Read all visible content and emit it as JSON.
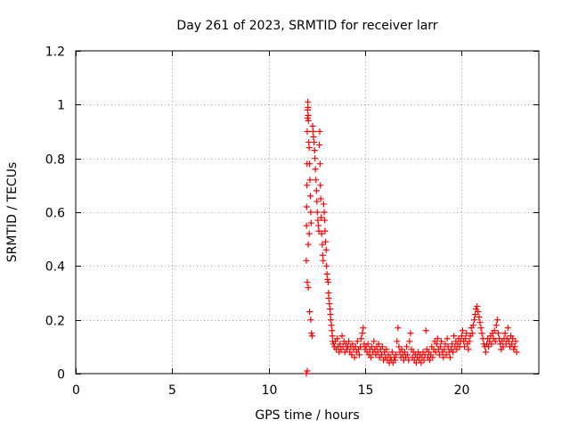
{
  "chart_data": {
    "type": "scatter",
    "title": "Day 261 of 2023, SRMTID for receiver larr",
    "xlabel": "GPS time / hours",
    "ylabel": "SRMTID / TECUs",
    "xlim": [
      0,
      24
    ],
    "ylim": [
      0,
      1.2
    ],
    "xticks": [
      0,
      5,
      10,
      15,
      20
    ],
    "yticks": [
      0,
      0.2,
      0.4,
      0.6,
      0.8,
      1,
      1.2
    ],
    "grid": true,
    "marker": "+",
    "series_color": "#ff0000",
    "series": [
      {
        "name": "SRMTID",
        "points": [
          [
            11.95,
            0.0
          ],
          [
            12.0,
            0.01
          ],
          [
            11.95,
            0.42
          ],
          [
            11.96,
            0.55
          ],
          [
            11.97,
            0.62
          ],
          [
            11.98,
            0.7
          ],
          [
            11.99,
            0.78
          ],
          [
            12.0,
            0.9
          ],
          [
            12.01,
            0.95
          ],
          [
            12.02,
            0.98
          ],
          [
            12.03,
            1.01
          ],
          [
            12.04,
            0.99
          ],
          [
            12.05,
            0.96
          ],
          [
            12.06,
            0.94
          ],
          [
            12.08,
            0.86
          ],
          [
            12.1,
            0.84
          ],
          [
            12.12,
            0.78
          ],
          [
            12.14,
            0.72
          ],
          [
            12.16,
            0.66
          ],
          [
            12.18,
            0.6
          ],
          [
            12.2,
            0.56
          ],
          [
            12.1,
            0.52
          ],
          [
            12.05,
            0.48
          ],
          [
            12.0,
            0.34
          ],
          [
            12.05,
            0.32
          ],
          [
            12.12,
            0.23
          ],
          [
            12.18,
            0.2
          ],
          [
            12.22,
            0.15
          ],
          [
            12.25,
            0.14
          ],
          [
            12.28,
            0.92
          ],
          [
            12.3,
            0.9
          ],
          [
            12.32,
            0.88
          ],
          [
            12.35,
            0.86
          ],
          [
            12.38,
            0.83
          ],
          [
            12.4,
            0.8
          ],
          [
            12.42,
            0.76
          ],
          [
            12.45,
            0.72
          ],
          [
            12.48,
            0.68
          ],
          [
            12.5,
            0.64
          ],
          [
            12.52,
            0.6
          ],
          [
            12.55,
            0.57
          ],
          [
            12.58,
            0.55
          ],
          [
            12.6,
            0.53
          ],
          [
            12.62,
            0.85
          ],
          [
            12.64,
            0.9
          ],
          [
            12.66,
            0.78
          ],
          [
            12.68,
            0.7
          ],
          [
            12.7,
            0.65
          ],
          [
            12.72,
            0.58
          ],
          [
            12.75,
            0.52
          ],
          [
            12.78,
            0.48
          ],
          [
            12.8,
            0.44
          ],
          [
            12.82,
            0.42
          ],
          [
            12.85,
            0.63
          ],
          [
            12.88,
            0.6
          ],
          [
            12.9,
            0.57
          ],
          [
            12.92,
            0.53
          ],
          [
            12.95,
            0.49
          ],
          [
            12.98,
            0.46
          ],
          [
            13.0,
            0.4
          ],
          [
            13.02,
            0.37
          ],
          [
            13.05,
            0.35
          ],
          [
            13.08,
            0.34
          ],
          [
            13.1,
            0.3
          ],
          [
            13.12,
            0.28
          ],
          [
            13.15,
            0.26
          ],
          [
            13.18,
            0.24
          ],
          [
            13.2,
            0.22
          ],
          [
            13.22,
            0.2
          ],
          [
            13.25,
            0.18
          ],
          [
            13.28,
            0.16
          ],
          [
            13.3,
            0.14
          ],
          [
            13.32,
            0.12
          ],
          [
            13.35,
            0.11
          ],
          [
            13.4,
            0.1
          ],
          [
            13.45,
            0.12
          ],
          [
            13.5,
            0.09
          ],
          [
            13.55,
            0.13
          ],
          [
            13.6,
            0.1
          ],
          [
            13.65,
            0.08
          ],
          [
            13.7,
            0.11
          ],
          [
            13.75,
            0.09
          ],
          [
            13.8,
            0.14
          ],
          [
            13.85,
            0.1
          ],
          [
            13.9,
            0.12
          ],
          [
            13.95,
            0.08
          ],
          [
            14.0,
            0.11
          ],
          [
            14.05,
            0.09
          ],
          [
            14.1,
            0.1
          ],
          [
            14.15,
            0.12
          ],
          [
            14.2,
            0.08
          ],
          [
            14.25,
            0.1
          ],
          [
            14.3,
            0.07
          ],
          [
            14.35,
            0.11
          ],
          [
            14.4,
            0.09
          ],
          [
            14.45,
            0.06
          ],
          [
            14.5,
            0.1
          ],
          [
            14.55,
            0.08
          ],
          [
            14.6,
            0.12
          ],
          [
            14.65,
            0.09
          ],
          [
            14.7,
            0.07
          ],
          [
            14.75,
            0.1
          ],
          [
            14.8,
            0.13
          ],
          [
            14.85,
            0.15
          ],
          [
            14.9,
            0.17
          ],
          [
            14.95,
            0.11
          ],
          [
            15.0,
            0.09
          ],
          [
            15.05,
            0.1
          ],
          [
            15.1,
            0.08
          ],
          [
            15.15,
            0.11
          ],
          [
            15.2,
            0.07
          ],
          [
            15.25,
            0.09
          ],
          [
            15.3,
            0.06
          ],
          [
            15.35,
            0.1
          ],
          [
            15.4,
            0.08
          ],
          [
            15.45,
            0.12
          ],
          [
            15.5,
            0.09
          ],
          [
            15.55,
            0.07
          ],
          [
            15.6,
            0.1
          ],
          [
            15.65,
            0.08
          ],
          [
            15.7,
            0.11
          ],
          [
            15.75,
            0.06
          ],
          [
            15.8,
            0.09
          ],
          [
            15.85,
            0.07
          ],
          [
            15.9,
            0.1
          ],
          [
            15.95,
            0.05
          ],
          [
            16.0,
            0.08
          ],
          [
            16.05,
            0.06
          ],
          [
            16.1,
            0.09
          ],
          [
            16.15,
            0.05
          ],
          [
            16.2,
            0.07
          ],
          [
            16.25,
            0.04
          ],
          [
            16.3,
            0.06
          ],
          [
            16.35,
            0.05
          ],
          [
            16.4,
            0.08
          ],
          [
            16.45,
            0.04
          ],
          [
            16.5,
            0.06
          ],
          [
            16.55,
            0.05
          ],
          [
            16.6,
            0.07
          ],
          [
            16.65,
            0.12
          ],
          [
            16.7,
            0.17
          ],
          [
            16.75,
            0.1
          ],
          [
            16.8,
            0.08
          ],
          [
            16.85,
            0.06
          ],
          [
            16.9,
            0.09
          ],
          [
            16.95,
            0.07
          ],
          [
            17.0,
            0.05
          ],
          [
            17.05,
            0.08
          ],
          [
            17.1,
            0.06
          ],
          [
            17.15,
            0.1
          ],
          [
            17.2,
            0.07
          ],
          [
            17.25,
            0.05
          ],
          [
            17.3,
            0.12
          ],
          [
            17.35,
            0.15
          ],
          [
            17.4,
            0.09
          ],
          [
            17.45,
            0.06
          ],
          [
            17.5,
            0.08
          ],
          [
            17.55,
            0.05
          ],
          [
            17.6,
            0.07
          ],
          [
            17.65,
            0.04
          ],
          [
            17.7,
            0.06
          ],
          [
            17.75,
            0.08
          ],
          [
            17.8,
            0.05
          ],
          [
            17.85,
            0.07
          ],
          [
            17.9,
            0.04
          ],
          [
            17.95,
            0.06
          ],
          [
            18.0,
            0.08
          ],
          [
            18.05,
            0.05
          ],
          [
            18.1,
            0.07
          ],
          [
            18.15,
            0.16
          ],
          [
            18.2,
            0.09
          ],
          [
            18.25,
            0.06
          ],
          [
            18.3,
            0.08
          ],
          [
            18.35,
            0.05
          ],
          [
            18.4,
            0.07
          ],
          [
            18.45,
            0.1
          ],
          [
            18.5,
            0.06
          ],
          [
            18.55,
            0.09
          ],
          [
            18.6,
            0.12
          ],
          [
            18.65,
            0.08
          ],
          [
            18.7,
            0.11
          ],
          [
            18.75,
            0.13
          ],
          [
            18.8,
            0.09
          ],
          [
            18.85,
            0.07
          ],
          [
            18.9,
            0.1
          ],
          [
            18.95,
            0.12
          ],
          [
            19.0,
            0.08
          ],
          [
            19.05,
            0.06
          ],
          [
            19.1,
            0.09
          ],
          [
            19.15,
            0.11
          ],
          [
            19.2,
            0.07
          ],
          [
            19.25,
            0.13
          ],
          [
            19.3,
            0.1
          ],
          [
            19.35,
            0.08
          ],
          [
            19.4,
            0.06
          ],
          [
            19.45,
            0.09
          ],
          [
            19.5,
            0.11
          ],
          [
            19.55,
            0.08
          ],
          [
            19.6,
            0.14
          ],
          [
            19.65,
            0.1
          ],
          [
            19.7,
            0.12
          ],
          [
            19.75,
            0.09
          ],
          [
            19.8,
            0.11
          ],
          [
            19.85,
            0.13
          ],
          [
            19.9,
            0.1
          ],
          [
            19.95,
            0.12
          ],
          [
            20.0,
            0.14
          ],
          [
            20.05,
            0.16
          ],
          [
            20.1,
            0.12
          ],
          [
            20.15,
            0.1
          ],
          [
            20.2,
            0.13
          ],
          [
            20.25,
            0.15
          ],
          [
            20.3,
            0.11
          ],
          [
            20.35,
            0.09
          ],
          [
            20.4,
            0.12
          ],
          [
            20.45,
            0.14
          ],
          [
            20.5,
            0.17
          ],
          [
            20.55,
            0.15
          ],
          [
            20.6,
            0.18
          ],
          [
            20.65,
            0.2
          ],
          [
            20.7,
            0.22
          ],
          [
            20.75,
            0.24
          ],
          [
            20.8,
            0.25
          ],
          [
            20.85,
            0.23
          ],
          [
            20.9,
            0.21
          ],
          [
            20.95,
            0.19
          ],
          [
            21.0,
            0.17
          ],
          [
            21.05,
            0.15
          ],
          [
            21.1,
            0.13
          ],
          [
            21.15,
            0.11
          ],
          [
            21.2,
            0.1
          ],
          [
            21.25,
            0.08
          ],
          [
            21.3,
            0.11
          ],
          [
            21.35,
            0.13
          ],
          [
            21.4,
            0.1
          ],
          [
            21.45,
            0.12
          ],
          [
            21.5,
            0.14
          ],
          [
            21.55,
            0.11
          ],
          [
            21.6,
            0.15
          ],
          [
            21.65,
            0.13
          ],
          [
            21.7,
            0.16
          ],
          [
            21.75,
            0.12
          ],
          [
            21.8,
            0.18
          ],
          [
            21.85,
            0.2
          ],
          [
            21.9,
            0.15
          ],
          [
            21.95,
            0.13
          ],
          [
            22.0,
            0.11
          ],
          [
            22.05,
            0.09
          ],
          [
            22.1,
            0.12
          ],
          [
            22.15,
            0.1
          ],
          [
            22.2,
            0.13
          ],
          [
            22.25,
            0.15
          ],
          [
            22.3,
            0.11
          ],
          [
            22.35,
            0.13
          ],
          [
            22.4,
            0.17
          ],
          [
            22.45,
            0.12
          ],
          [
            22.5,
            0.1
          ],
          [
            22.55,
            0.14
          ],
          [
            22.6,
            0.11
          ],
          [
            22.65,
            0.13
          ],
          [
            22.7,
            0.09
          ],
          [
            22.75,
            0.1
          ],
          [
            22.8,
            0.12
          ],
          [
            22.85,
            0.08
          ]
        ]
      }
    ]
  }
}
